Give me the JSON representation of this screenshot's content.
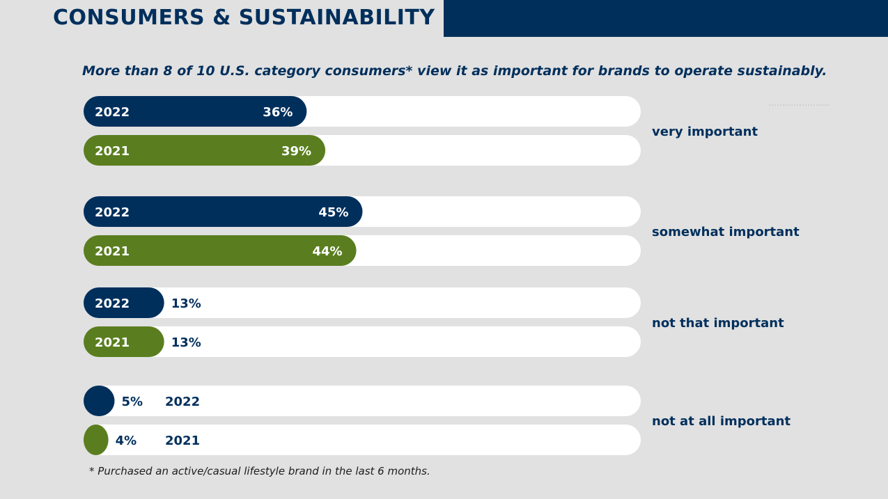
{
  "header": {
    "title": "CONSUMERS & SUSTAINABILITY",
    "subtitle": "More than 8 of 10 U.S. category consumers* view it as important for brands to operate sustainably.",
    "footnote": "* Purchased an active/casual lifestyle brand in the last 6 months."
  },
  "colors": {
    "navy": "#002f5c",
    "green": "#5a7e1f",
    "track": "#ffffff",
    "background": "#e1e1e1"
  },
  "chart_data": {
    "type": "bar",
    "orientation": "horizontal",
    "title": "More than 8 of 10 U.S. category consumers* view it as important for brands to operate sustainably.",
    "unit": "%",
    "xlim": [
      0,
      100
    ],
    "series_names": [
      "2022",
      "2021"
    ],
    "groups": [
      {
        "category": "very important",
        "bars": [
          {
            "year": "2022",
            "value": 36,
            "label": "36%",
            "color": "#002f5c"
          },
          {
            "year": "2021",
            "value": 39,
            "label": "39%",
            "color": "#5a7e1f"
          }
        ]
      },
      {
        "category": "somewhat important",
        "bars": [
          {
            "year": "2022",
            "value": 45,
            "label": "45%",
            "color": "#002f5c"
          },
          {
            "year": "2021",
            "value": 44,
            "label": "44%",
            "color": "#5a7e1f"
          }
        ]
      },
      {
        "category": "not that important",
        "bars": [
          {
            "year": "2022",
            "value": 13,
            "label": "13%",
            "color": "#002f5c"
          },
          {
            "year": "2021",
            "value": 13,
            "label": "13%",
            "color": "#5a7e1f"
          }
        ]
      },
      {
        "category": "not at all important",
        "bars": [
          {
            "year": "2022",
            "value": 5,
            "label": "5%",
            "color": "#002f5c"
          },
          {
            "year": "2021",
            "value": 4,
            "label": "4%",
            "color": "#5a7e1f"
          }
        ]
      }
    ]
  }
}
